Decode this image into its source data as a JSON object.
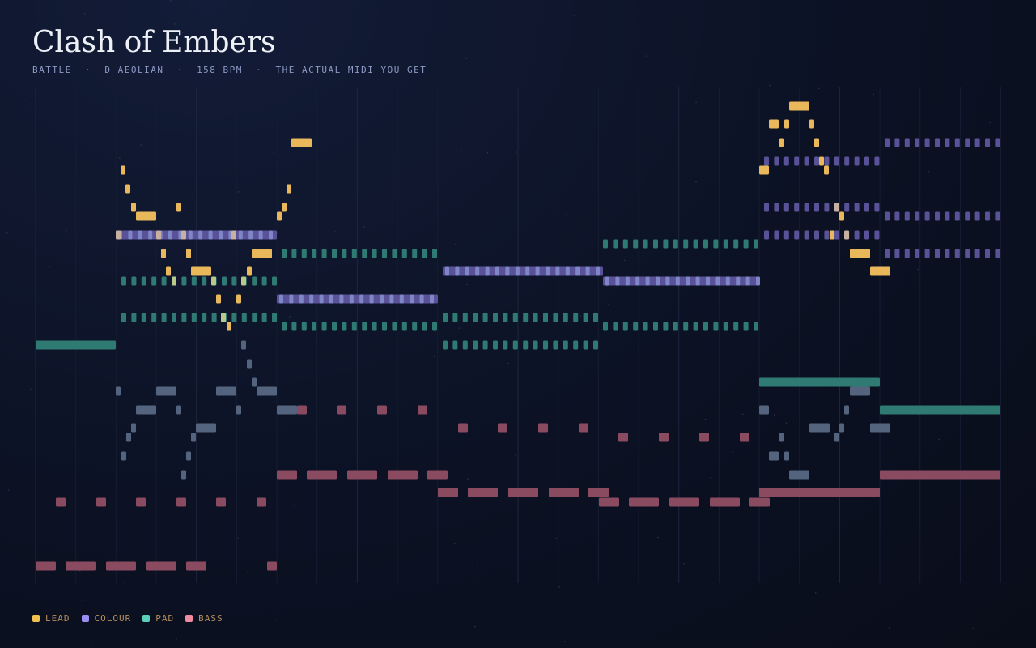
{
  "header": {
    "title": "Clash of Embers",
    "subtitle": "BATTLE  ·  D AEOLIAN  ·  158 BPM  ·  THE ACTUAL MIDI YOU GET"
  },
  "legend": [
    {
      "name": "LEAD",
      "color": "#f0c050"
    },
    {
      "name": "COLOUR",
      "color": "#9a8ff0"
    },
    {
      "name": "PAD",
      "color": "#5ccfb8"
    },
    {
      "name": "BASS",
      "color": "#f08aa0"
    }
  ]
}
